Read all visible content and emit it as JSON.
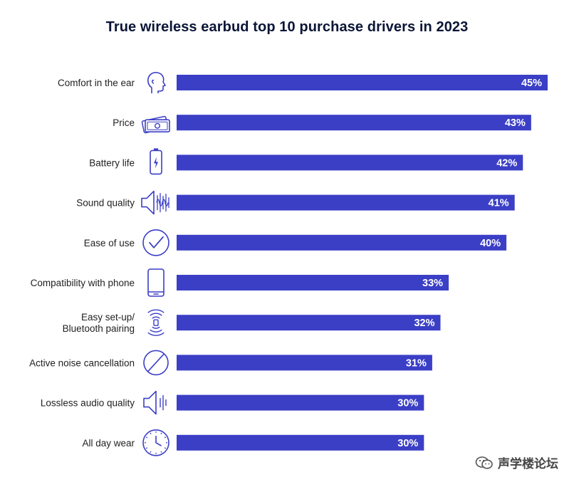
{
  "chart_data": {
    "type": "bar",
    "orientation": "horizontal",
    "title": "True wireless earbud top 10 purchase drivers in 2023",
    "xlabel": "",
    "ylabel": "",
    "xlim": [
      0,
      45
    ],
    "grid": false,
    "bar_color": "#3b3fc6",
    "categories": [
      "Comfort in the ear",
      "Price",
      "Battery life",
      "Sound quality",
      "Ease of use",
      "Compatibility with phone",
      "Easy set-up/\nBluetooth pairing",
      "Active noise cancellation",
      "Lossless audio quality",
      "All day wear"
    ],
    "values": [
      45,
      43,
      42,
      41,
      40,
      33,
      32,
      31,
      30,
      30
    ],
    "value_labels": [
      "45%",
      "43%",
      "42%",
      "41%",
      "40%",
      "33%",
      "32%",
      "31%",
      "30%",
      "30%"
    ],
    "icons": [
      "head-profile-icon",
      "banknotes-icon",
      "battery-icon",
      "speaker-soundwave-icon",
      "checkmark-circle-icon",
      "smartphone-icon",
      "bluetooth-signal-icon",
      "prohibited-circle-icon",
      "speaker-icon",
      "clock-icon"
    ]
  },
  "watermark": {
    "text": "声学楼论坛",
    "icon": "wechat-icon"
  },
  "colors": {
    "bar": "#3b3fc6",
    "title": "#0b1537",
    "label": "#222222",
    "icon": "#3b3fc6"
  }
}
